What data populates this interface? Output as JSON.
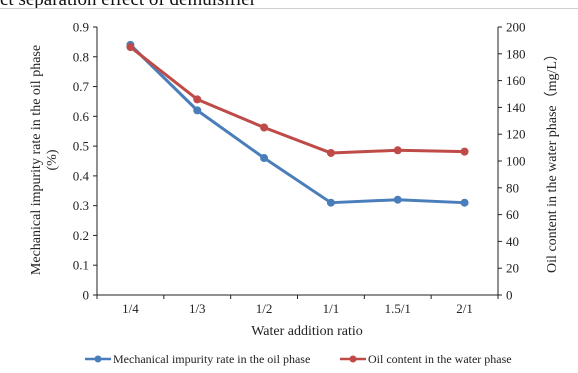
{
  "figure": {
    "cut_title": "ct separation effect of demulsifier"
  },
  "colors": {
    "series1": "#4a7ebb",
    "series2": "#be4b48",
    "axis": "#222222",
    "text": "#222222"
  },
  "chart_data": {
    "type": "line",
    "title": "",
    "xlabel": "Water addition ratio",
    "ylabel_left": "Mechanical impurity rate in the oil phase (%)",
    "ylabel_left_lines": [
      "Mechanical impurity rate in the oil phase",
      "(%)"
    ],
    "ylabel_right": "Oil content in the water phase（mg/L）",
    "categories": [
      "1/4",
      "1/3",
      "1/2",
      "1/1",
      "1.5/1",
      "2/1"
    ],
    "ylim_left": [
      0,
      0.9
    ],
    "yticks_left": [
      "0",
      "0.1",
      "0.2",
      "0.3",
      "0.4",
      "0.5",
      "0.6",
      "0.7",
      "0.8",
      "0.9"
    ],
    "ylim_right": [
      0,
      200
    ],
    "yticks_right": [
      "0",
      "20",
      "40",
      "60",
      "80",
      "100",
      "120",
      "140",
      "160",
      "180",
      "200"
    ],
    "grid": false,
    "legend_position": "bottom",
    "series": [
      {
        "name": "Mechanical impurity rate in the oil phase",
        "axis": "left",
        "values": [
          0.84,
          0.62,
          0.46,
          0.31,
          0.32,
          0.31
        ]
      },
      {
        "name": "Oil content in the water phase",
        "axis": "right",
        "values": [
          185,
          146,
          125,
          106,
          108,
          107
        ]
      }
    ]
  }
}
